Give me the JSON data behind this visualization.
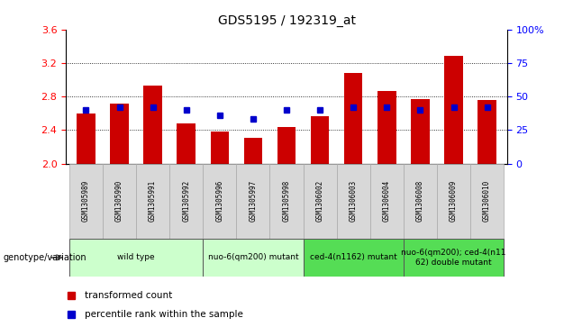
{
  "title": "GDS5195 / 192319_at",
  "samples": [
    "GSM1305989",
    "GSM1305990",
    "GSM1305991",
    "GSM1305992",
    "GSM1305996",
    "GSM1305997",
    "GSM1305998",
    "GSM1306002",
    "GSM1306003",
    "GSM1306004",
    "GSM1306008",
    "GSM1306009",
    "GSM1306010"
  ],
  "red_values": [
    2.6,
    2.72,
    2.93,
    2.48,
    2.38,
    2.31,
    2.44,
    2.56,
    3.08,
    2.87,
    2.77,
    3.28,
    2.76
  ],
  "blue_percentile": [
    40,
    42,
    42,
    40,
    36,
    33,
    40,
    40,
    42,
    42,
    40,
    42,
    42
  ],
  "ylim": [
    2.0,
    3.6
  ],
  "y2lim": [
    0,
    100
  ],
  "yticks": [
    2.0,
    2.4,
    2.8,
    3.2,
    3.6
  ],
  "y2ticks": [
    0,
    25,
    50,
    75,
    100
  ],
  "groups": [
    {
      "label": "wild type",
      "indices": [
        0,
        1,
        2,
        3
      ],
      "color": "#ccffcc"
    },
    {
      "label": "nuo-6(qm200) mutant",
      "indices": [
        4,
        5,
        6
      ],
      "color": "#ccffcc"
    },
    {
      "label": "ced-4(n1162) mutant",
      "indices": [
        7,
        8,
        9
      ],
      "color": "#55dd55"
    },
    {
      "label": "nuo-6(qm200); ced-4(n11\n62) double mutant",
      "indices": [
        10,
        11,
        12
      ],
      "color": "#55dd55"
    }
  ],
  "bar_width": 0.55,
  "red_color": "#cc0000",
  "blue_color": "#0000cc",
  "label_bg": "#d8d8d8"
}
